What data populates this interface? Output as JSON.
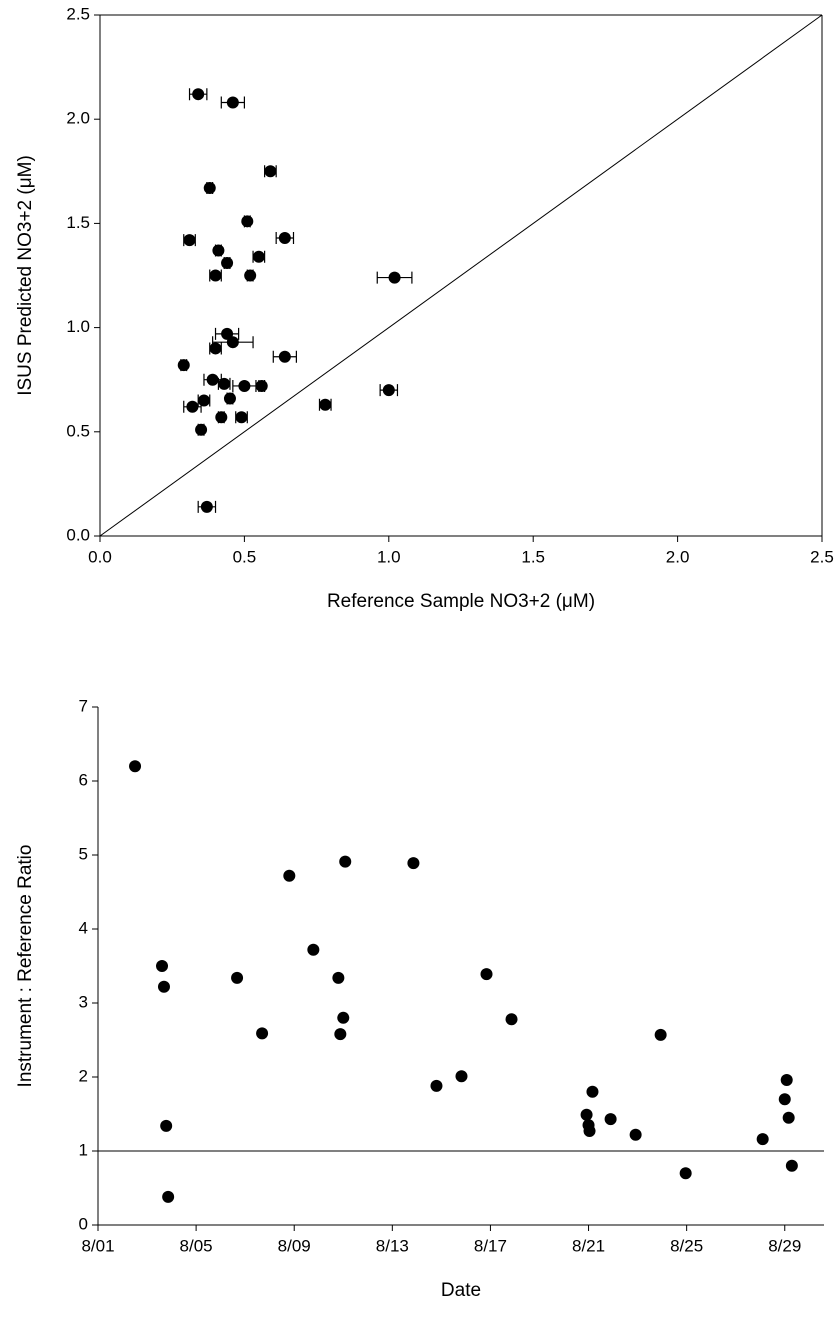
{
  "chart_data": [
    {
      "type": "scatter",
      "xlabel": "Reference Sample NO3+2 (μM)",
      "ylabel": "ISUS Predicted NO3+2 (μM)",
      "xlim": [
        0,
        2.5
      ],
      "ylim": [
        0,
        2.5
      ],
      "xticks": [
        {
          "value": 0,
          "label": "0.0"
        },
        {
          "value": 0.5,
          "label": "0.5"
        },
        {
          "value": 1,
          "label": "1.0"
        },
        {
          "value": 1.5,
          "label": "1.5"
        },
        {
          "value": 2,
          "label": "2.0"
        },
        {
          "value": 2.5,
          "label": "2.5"
        }
      ],
      "yticks": [
        {
          "value": 0,
          "label": "0.0"
        },
        {
          "value": 0.5,
          "label": "0.5"
        },
        {
          "value": 1,
          "label": "1.0"
        },
        {
          "value": 1.5,
          "label": "1.5"
        },
        {
          "value": 2,
          "label": "2.0"
        },
        {
          "value": 2.5,
          "label": "2.5"
        }
      ],
      "identity_line": true,
      "color": "#000000",
      "x": [
        0.34,
        0.46,
        0.59,
        0.38,
        0.51,
        0.31,
        0.64,
        0.41,
        0.55,
        0.44,
        0.4,
        0.52,
        1.02,
        0.44,
        0.46,
        0.4,
        0.64,
        0.29,
        0.39,
        0.43,
        0.5,
        0.56,
        1.0,
        0.45,
        0.36,
        0.32,
        0.78,
        0.42,
        0.49,
        0.35,
        0.37
      ],
      "values": [
        2.12,
        2.08,
        1.75,
        1.67,
        1.51,
        1.42,
        1.43,
        1.37,
        1.34,
        1.31,
        1.25,
        1.25,
        1.24,
        0.97,
        0.93,
        0.9,
        0.86,
        0.82,
        0.75,
        0.73,
        0.72,
        0.72,
        0.7,
        0.66,
        0.65,
        0.62,
        0.63,
        0.57,
        0.57,
        0.51,
        0.14
      ],
      "x_errors": [
        0.03,
        0.04,
        0.02,
        0.01,
        0.01,
        0.02,
        0.03,
        0.01,
        0.02,
        0.01,
        0.02,
        0.01,
        0.06,
        0.04,
        0.07,
        0.02,
        0.04,
        0.01,
        0.03,
        0.02,
        0.04,
        0.01,
        0.03,
        0.01,
        0.02,
        0.03,
        0.02,
        0.01,
        0.02,
        0.01,
        0.03
      ]
    },
    {
      "type": "scatter",
      "xlabel": "Date",
      "ylabel": "Instrument : Reference Ratio",
      "xlim": [
        1,
        30.6
      ],
      "ylim": [
        0,
        7
      ],
      "xticks": [
        {
          "value": 1,
          "label": "8/01"
        },
        {
          "value": 5,
          "label": "8/05"
        },
        {
          "value": 9,
          "label": "8/09"
        },
        {
          "value": 13,
          "label": "8/13"
        },
        {
          "value": 17,
          "label": "8/17"
        },
        {
          "value": 21,
          "label": "8/21"
        },
        {
          "value": 25,
          "label": "8/25"
        },
        {
          "value": 29,
          "label": "8/29"
        }
      ],
      "yticks": [
        0,
        1,
        2,
        3,
        4,
        5,
        6,
        7
      ],
      "hline": 1,
      "color": "#000000",
      "x": [
        2.51,
        3.61,
        3.69,
        3.78,
        3.86,
        6.67,
        7.69,
        8.8,
        9.78,
        10.8,
        10.88,
        11.0,
        11.08,
        13.86,
        14.8,
        15.82,
        16.84,
        17.86,
        20.92,
        21.0,
        21.04,
        21.16,
        21.9,
        22.92,
        23.94,
        24.96,
        28.1,
        29.0,
        29.08,
        29.16,
        29.29
      ],
      "values": [
        6.2,
        3.5,
        3.22,
        1.34,
        0.38,
        3.34,
        2.59,
        4.72,
        3.72,
        3.34,
        2.58,
        2.8,
        4.91,
        4.89,
        1.88,
        2.01,
        3.39,
        2.78,
        1.49,
        1.35,
        1.27,
        1.8,
        1.43,
        1.22,
        2.57,
        0.7,
        1.16,
        1.7,
        1.96,
        1.45,
        0.8
      ]
    }
  ]
}
